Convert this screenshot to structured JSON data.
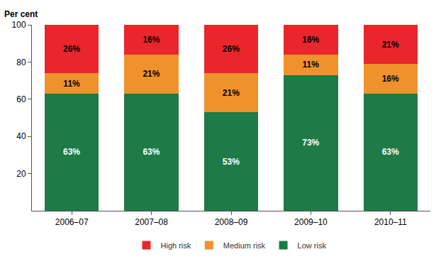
{
  "chart_data": {
    "type": "bar",
    "stacked": true,
    "y_label": "Per cent",
    "categories": [
      "2006–07",
      "2007–08",
      "2008–09",
      "2009–10",
      "2010–11"
    ],
    "series": [
      {
        "name": "Low risk",
        "color": "#1e7a46",
        "values": [
          63,
          63,
          53,
          73,
          63
        ],
        "value_labels": [
          "63%",
          "63%",
          "53%",
          "73%",
          "63%"
        ]
      },
      {
        "name": "Medium risk",
        "color": "#f0922b",
        "values": [
          11,
          21,
          21,
          11,
          16
        ],
        "value_labels": [
          "11%",
          "21%",
          "21%",
          "11%",
          "16%"
        ]
      },
      {
        "name": "High risk",
        "color": "#e8262b",
        "values": [
          26,
          16,
          26,
          16,
          21
        ],
        "value_labels": [
          "26%",
          "16%",
          "26%",
          "16%",
          "21%"
        ]
      }
    ],
    "ylim": [
      0,
      100
    ],
    "yticks": [
      20,
      40,
      60,
      80,
      100
    ],
    "grid": false,
    "legend": "bottom",
    "data_labels": true
  }
}
